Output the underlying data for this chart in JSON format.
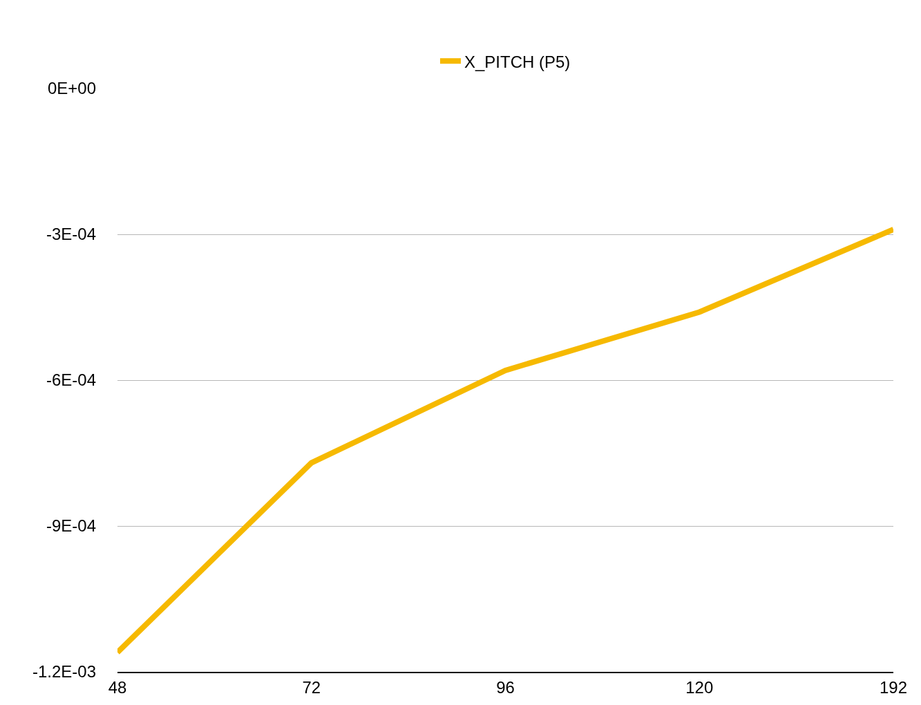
{
  "chart_data": {
    "type": "line",
    "categories": [
      "48",
      "72",
      "96",
      "120",
      "192"
    ],
    "series": [
      {
        "name": "X_PITCH (P5)",
        "color": "#f6b900",
        "values": [
          -0.00116,
          -0.00077,
          -0.00058,
          -0.00046,
          -0.00029
        ]
      }
    ],
    "ylim": [
      -0.0012,
      0
    ],
    "yticks": [
      {
        "value": -0.0012,
        "label": "-1.2E-03"
      },
      {
        "value": -0.0009,
        "label": "-9E-04"
      },
      {
        "value": -0.0006,
        "label": "-6E-04"
      },
      {
        "value": -0.0003,
        "label": "-3E-04"
      },
      {
        "value": 0,
        "label": "0E+00"
      }
    ],
    "grid": "y",
    "legend": "top",
    "marker": "none",
    "line_style": "solid"
  }
}
